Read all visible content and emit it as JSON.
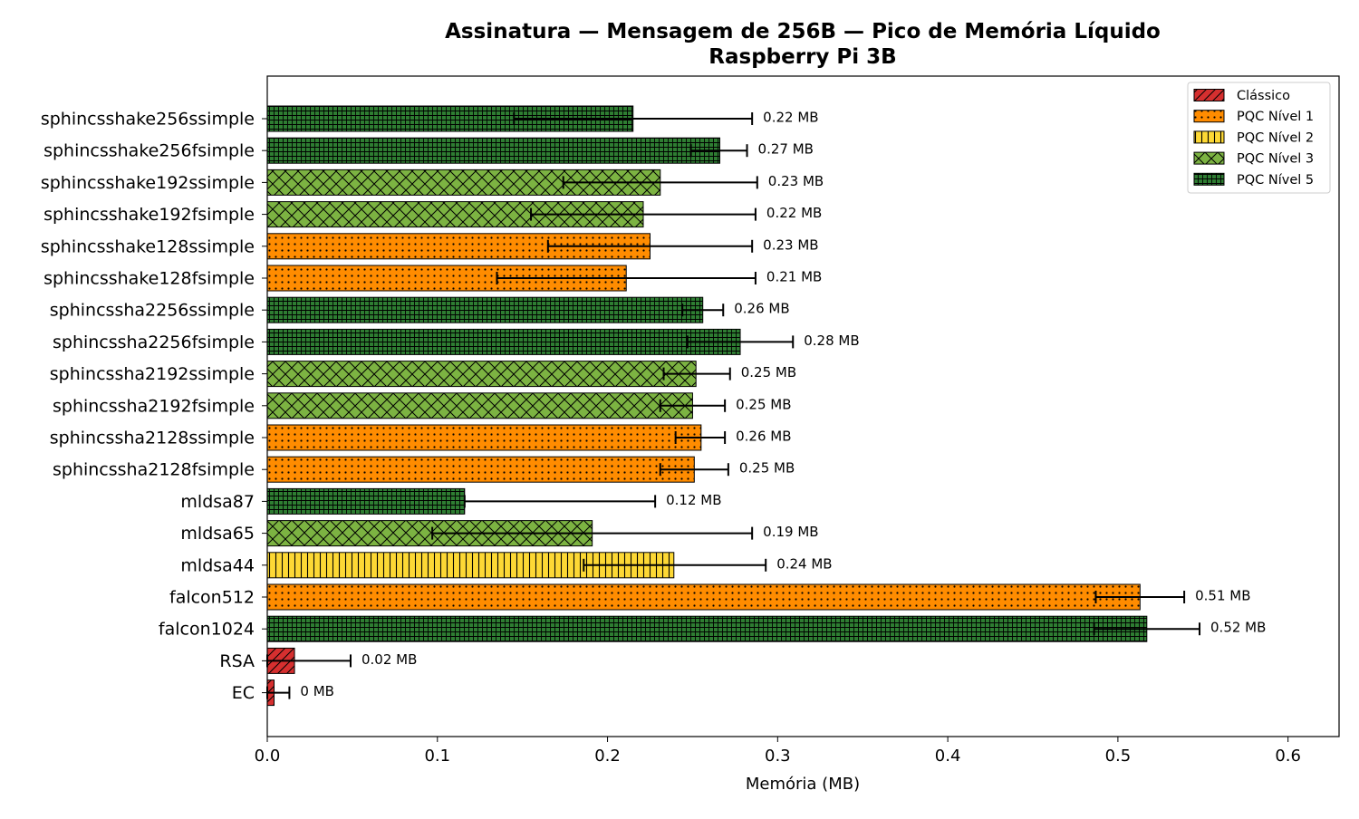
{
  "chart_data": {
    "type": "bar",
    "orientation": "horizontal",
    "title": "Assinatura — Mensagem de 256B — Pico de Memória Líquido",
    "subtitle": "Raspberry Pi 3B",
    "xlabel": "Memória (MB)",
    "ylabel": "",
    "xlim": [
      0,
      0.63
    ],
    "xticks": [
      0.0,
      0.1,
      0.2,
      0.3,
      0.4,
      0.5,
      0.6
    ],
    "xtick_labels": [
      "0.0",
      "0.1",
      "0.2",
      "0.3",
      "0.4",
      "0.5",
      "0.6"
    ],
    "grid": false,
    "legend_position": "top-right",
    "legend": [
      {
        "name": "Clássico",
        "color": "#d62f2f",
        "hatch": "diagonal"
      },
      {
        "name": "PQC Nível 1",
        "color": "#ff8c00",
        "hatch": "dots"
      },
      {
        "name": "PQC Nível 2",
        "color": "#fdd835",
        "hatch": "vertical"
      },
      {
        "name": "PQC Nível 3",
        "color": "#7cb342",
        "hatch": "cross"
      },
      {
        "name": "PQC Nível 5",
        "color": "#2e7d32",
        "hatch": "grid"
      }
    ],
    "bars": [
      {
        "label": "sphincsshake256ssimple",
        "value": 0.215,
        "err_low": 0.145,
        "err_high": 0.285,
        "group": 4,
        "annotation": "0.22 MB"
      },
      {
        "label": "sphincsshake256fsimple",
        "value": 0.266,
        "err_low": 0.249,
        "err_high": 0.282,
        "group": 4,
        "annotation": "0.27 MB"
      },
      {
        "label": "sphincsshake192ssimple",
        "value": 0.231,
        "err_low": 0.174,
        "err_high": 0.288,
        "group": 3,
        "annotation": "0.23 MB"
      },
      {
        "label": "sphincsshake192fsimple",
        "value": 0.221,
        "err_low": 0.155,
        "err_high": 0.287,
        "group": 3,
        "annotation": "0.22 MB"
      },
      {
        "label": "sphincsshake128ssimple",
        "value": 0.225,
        "err_low": 0.165,
        "err_high": 0.285,
        "group": 1,
        "annotation": "0.23 MB"
      },
      {
        "label": "sphincsshake128fsimple",
        "value": 0.211,
        "err_low": 0.135,
        "err_high": 0.287,
        "group": 1,
        "annotation": "0.21 MB"
      },
      {
        "label": "sphincssha2256ssimple",
        "value": 0.256,
        "err_low": 0.244,
        "err_high": 0.268,
        "group": 4,
        "annotation": "0.26 MB"
      },
      {
        "label": "sphincssha2256fsimple",
        "value": 0.278,
        "err_low": 0.247,
        "err_high": 0.309,
        "group": 4,
        "annotation": "0.28 MB"
      },
      {
        "label": "sphincssha2192ssimple",
        "value": 0.252,
        "err_low": 0.233,
        "err_high": 0.272,
        "group": 3,
        "annotation": "0.25 MB"
      },
      {
        "label": "sphincssha2192fsimple",
        "value": 0.25,
        "err_low": 0.231,
        "err_high": 0.269,
        "group": 3,
        "annotation": "0.25 MB"
      },
      {
        "label": "sphincssha2128ssimple",
        "value": 0.255,
        "err_low": 0.24,
        "err_high": 0.269,
        "group": 1,
        "annotation": "0.26 MB"
      },
      {
        "label": "sphincssha2128fsimple",
        "value": 0.251,
        "err_low": 0.231,
        "err_high": 0.271,
        "group": 1,
        "annotation": "0.25 MB"
      },
      {
        "label": "mldsa87",
        "value": 0.116,
        "err_low": 0.116,
        "err_high": 0.228,
        "group": 4,
        "annotation": "0.12 MB"
      },
      {
        "label": "mldsa65",
        "value": 0.191,
        "err_low": 0.097,
        "err_high": 0.285,
        "group": 3,
        "annotation": "0.19 MB"
      },
      {
        "label": "mldsa44",
        "value": 0.239,
        "err_low": 0.186,
        "err_high": 0.293,
        "group": 2,
        "annotation": "0.24 MB"
      },
      {
        "label": "falcon512",
        "value": 0.513,
        "err_low": 0.487,
        "err_high": 0.539,
        "group": 1,
        "annotation": "0.51 MB"
      },
      {
        "label": "falcon1024",
        "value": 0.517,
        "err_low": 0.486,
        "err_high": 0.548,
        "group": 4,
        "annotation": "0.52 MB"
      },
      {
        "label": "RSA",
        "value": 0.016,
        "err_low": 0.0,
        "err_high": 0.049,
        "group": 0,
        "annotation": "0.02 MB"
      },
      {
        "label": "EC",
        "value": 0.004,
        "err_low": 0.0,
        "err_high": 0.013,
        "group": 0,
        "annotation": "0 MB"
      }
    ]
  }
}
